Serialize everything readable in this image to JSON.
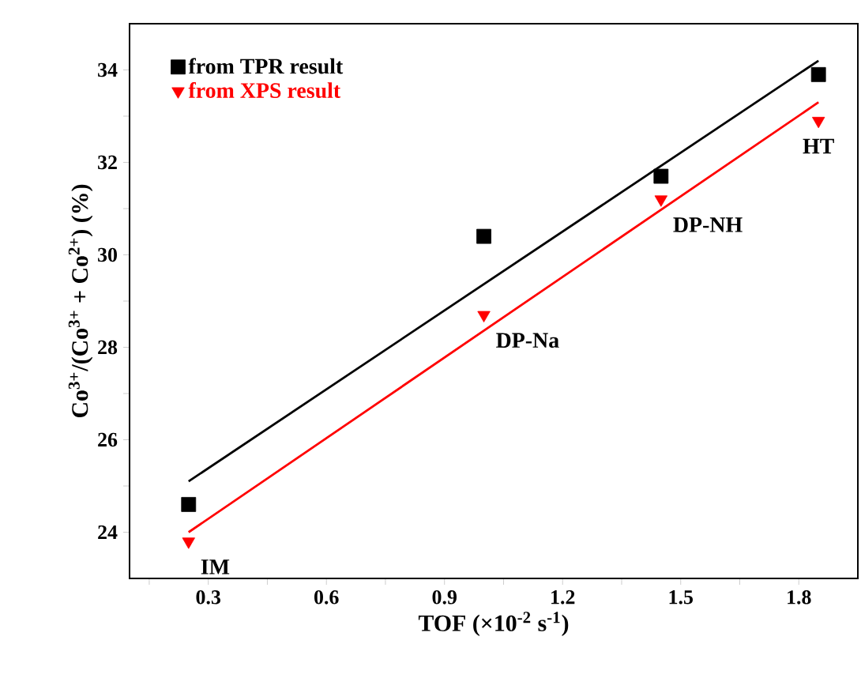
{
  "chart_data": {
    "type": "scatter",
    "xlabel": "TOF (×10$^{-2}$ s$^{-1}$)",
    "ylabel": "Co$^{3+}$/(Co$^{3+}$ + Co$^{2+}$) (%)",
    "xlim": [
      0.1,
      1.95
    ],
    "ylim": [
      23,
      35
    ],
    "xticks": [
      {
        "value": 0.15,
        "label": null
      },
      0.3,
      {
        "value": 0.45,
        "label": null
      },
      0.6,
      {
        "value": 0.75,
        "label": null
      },
      0.9,
      {
        "value": 1.05,
        "label": null
      },
      1.2,
      {
        "value": 1.35,
        "label": null
      },
      1.5,
      {
        "value": 1.65,
        "label": null
      },
      1.8
    ],
    "yticks": [
      24,
      {
        "value": 25,
        "label": null
      },
      26,
      {
        "value": 27,
        "label": null
      },
      28,
      {
        "value": 29,
        "label": null
      },
      30,
      {
        "value": 31,
        "label": null
      },
      32,
      {
        "value": 33,
        "label": null
      },
      34
    ],
    "legend": "top left",
    "grid": false,
    "series": [
      {
        "name": "from TPR result",
        "color": "#000000",
        "marker": "square",
        "x": [
          0.25,
          1.0,
          1.45,
          1.85
        ],
        "values": [
          24.6,
          30.4,
          31.7,
          33.9
        ]
      },
      {
        "name": "from XPS result",
        "color": "#ff0000",
        "marker": "triangle",
        "x": [
          0.25,
          1.0,
          1.45,
          1.85
        ],
        "values": [
          23.8,
          28.7,
          31.2,
          32.9
        ]
      },
      {
        "type": "line",
        "color": "#000000",
        "x": [
          0.25,
          1.85
        ],
        "values": [
          25.1,
          34.2
        ]
      },
      {
        "type": "line",
        "color": "#ff0000",
        "x": [
          0.25,
          1.85
        ],
        "values": [
          24.0,
          33.3
        ]
      }
    ],
    "annotations": [
      {
        "text": "IM",
        "x": 0.25,
        "y": 23.8
      },
      {
        "text": "DP-Na",
        "x": 1.0,
        "y": 28.7
      },
      {
        "text": "DP-NH",
        "x": 1.45,
        "y": 31.2
      },
      {
        "text": "HT",
        "x": 1.85,
        "y": 32.9
      }
    ]
  }
}
